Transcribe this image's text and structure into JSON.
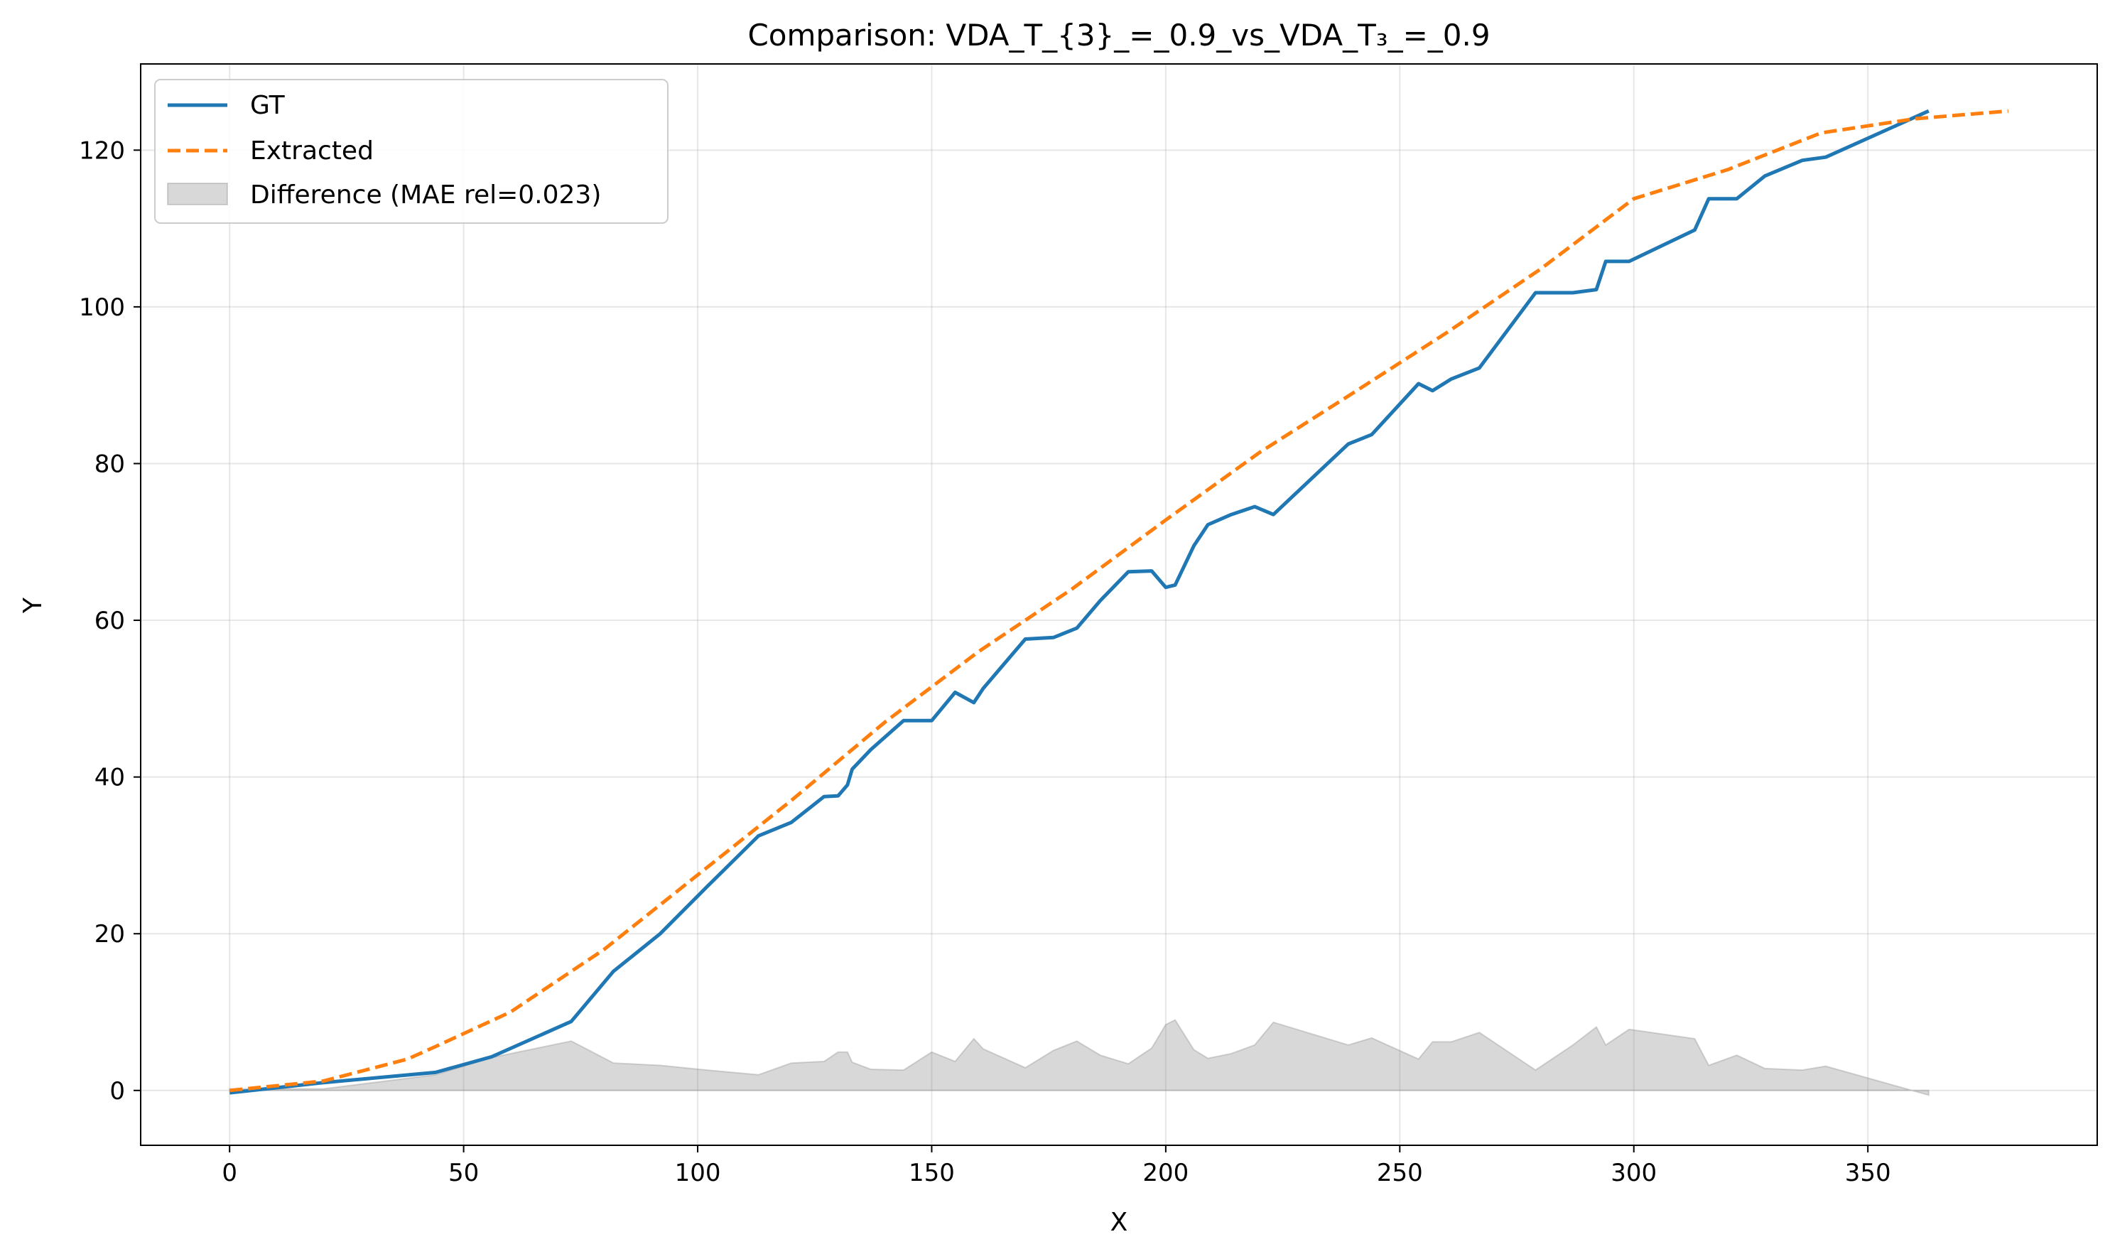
{
  "chart_data": {
    "type": "line",
    "title": "Comparison: VDA_T_{3}_=_0.9_vs_VDA_T₃_=_0.9",
    "xlabel": "X",
    "ylabel": "Y",
    "xlim": [
      -19,
      399
    ],
    "ylim": [
      -7,
      131
    ],
    "xticks": [
      0,
      50,
      100,
      150,
      200,
      250,
      300,
      350
    ],
    "yticks": [
      0,
      20,
      40,
      60,
      80,
      100,
      120
    ],
    "grid": true,
    "legend_position": "top-left",
    "series": [
      {
        "name": "GT",
        "color": "#1f77b4",
        "style": "solid",
        "points": [
          [
            0,
            -0.3
          ],
          [
            20,
            1
          ],
          [
            44,
            2.3
          ],
          [
            56,
            4.3
          ],
          [
            73,
            8.8
          ],
          [
            82,
            15.2
          ],
          [
            92,
            20
          ],
          [
            102,
            26
          ],
          [
            113,
            32.5
          ],
          [
            120,
            34.2
          ],
          [
            127,
            37.5
          ],
          [
            130,
            37.6
          ],
          [
            132,
            39
          ],
          [
            133,
            41
          ],
          [
            137,
            43.5
          ],
          [
            144,
            47.2
          ],
          [
            150,
            47.2
          ],
          [
            155,
            50.8
          ],
          [
            159,
            49.5
          ],
          [
            161,
            51.3
          ],
          [
            170,
            57.6
          ],
          [
            176,
            57.8
          ],
          [
            181,
            59
          ],
          [
            186,
            62.5
          ],
          [
            192,
            66.2
          ],
          [
            197,
            66.3
          ],
          [
            200,
            64.2
          ],
          [
            202,
            64.5
          ],
          [
            206,
            69.5
          ],
          [
            209,
            72.2
          ],
          [
            214,
            73.5
          ],
          [
            219,
            74.5
          ],
          [
            223,
            73.5
          ],
          [
            239,
            82.5
          ],
          [
            244,
            83.7
          ],
          [
            254,
            90.2
          ],
          [
            257,
            89.3
          ],
          [
            261,
            90.8
          ],
          [
            267,
            92.2
          ],
          [
            279,
            101.8
          ],
          [
            287,
            101.8
          ],
          [
            292,
            102.2
          ],
          [
            294,
            105.8
          ],
          [
            299,
            105.8
          ],
          [
            313,
            109.8
          ],
          [
            316,
            113.8
          ],
          [
            322,
            113.8
          ],
          [
            328,
            116.7
          ],
          [
            336,
            118.7
          ],
          [
            341,
            119.1
          ],
          [
            363,
            125
          ]
        ]
      },
      {
        "name": "Extracted",
        "color": "#ff7f0e",
        "style": "dashed",
        "points": [
          [
            0,
            0
          ],
          [
            20,
            1.2
          ],
          [
            38,
            4
          ],
          [
            44,
            5.6
          ],
          [
            60,
            10
          ],
          [
            80,
            18
          ],
          [
            100,
            27.5
          ],
          [
            120,
            37
          ],
          [
            140,
            47
          ],
          [
            160,
            56
          ],
          [
            180,
            64
          ],
          [
            200,
            72.8
          ],
          [
            220,
            81.4
          ],
          [
            240,
            89
          ],
          [
            260,
            96.7
          ],
          [
            280,
            104.8
          ],
          [
            300,
            113.8
          ],
          [
            320,
            117.5
          ],
          [
            340,
            122.2
          ],
          [
            360,
            124
          ],
          [
            380,
            125
          ]
        ]
      }
    ],
    "difference": {
      "name": "Difference (MAE rel=0.023)",
      "color": "#7f7f7f",
      "points": [
        [
          0,
          0.2
        ],
        [
          20,
          0.2
        ],
        [
          44,
          2
        ],
        [
          56,
          4.2
        ],
        [
          73,
          6.3
        ],
        [
          82,
          3.5
        ],
        [
          92,
          3.2
        ],
        [
          102,
          2.6
        ],
        [
          113,
          2
        ],
        [
          120,
          3.5
        ],
        [
          127,
          3.7
        ],
        [
          130,
          4.9
        ],
        [
          132,
          4.9
        ],
        [
          133,
          3.6
        ],
        [
          137,
          2.7
        ],
        [
          144,
          2.6
        ],
        [
          150,
          4.9
        ],
        [
          155,
          3.7
        ],
        [
          159,
          6.6
        ],
        [
          161,
          5.3
        ],
        [
          170,
          2.9
        ],
        [
          176,
          5.1
        ],
        [
          181,
          6.3
        ],
        [
          186,
          4.5
        ],
        [
          192,
          3.4
        ],
        [
          197,
          5.4
        ],
        [
          200,
          8.4
        ],
        [
          202,
          9
        ],
        [
          206,
          5.2
        ],
        [
          209,
          4.1
        ],
        [
          214,
          4.7
        ],
        [
          219,
          5.8
        ],
        [
          223,
          8.7
        ],
        [
          239,
          5.8
        ],
        [
          244,
          6.7
        ],
        [
          254,
          4
        ],
        [
          257,
          6.2
        ],
        [
          261,
          6.2
        ],
        [
          267,
          7.4
        ],
        [
          279,
          2.6
        ],
        [
          287,
          5.8
        ],
        [
          292,
          8.1
        ],
        [
          294,
          5.8
        ],
        [
          299,
          7.8
        ],
        [
          313,
          6.6
        ],
        [
          316,
          3.2
        ],
        [
          322,
          4.5
        ],
        [
          328,
          2.8
        ],
        [
          336,
          2.6
        ],
        [
          341,
          3.1
        ],
        [
          363,
          -0.6
        ]
      ]
    }
  }
}
